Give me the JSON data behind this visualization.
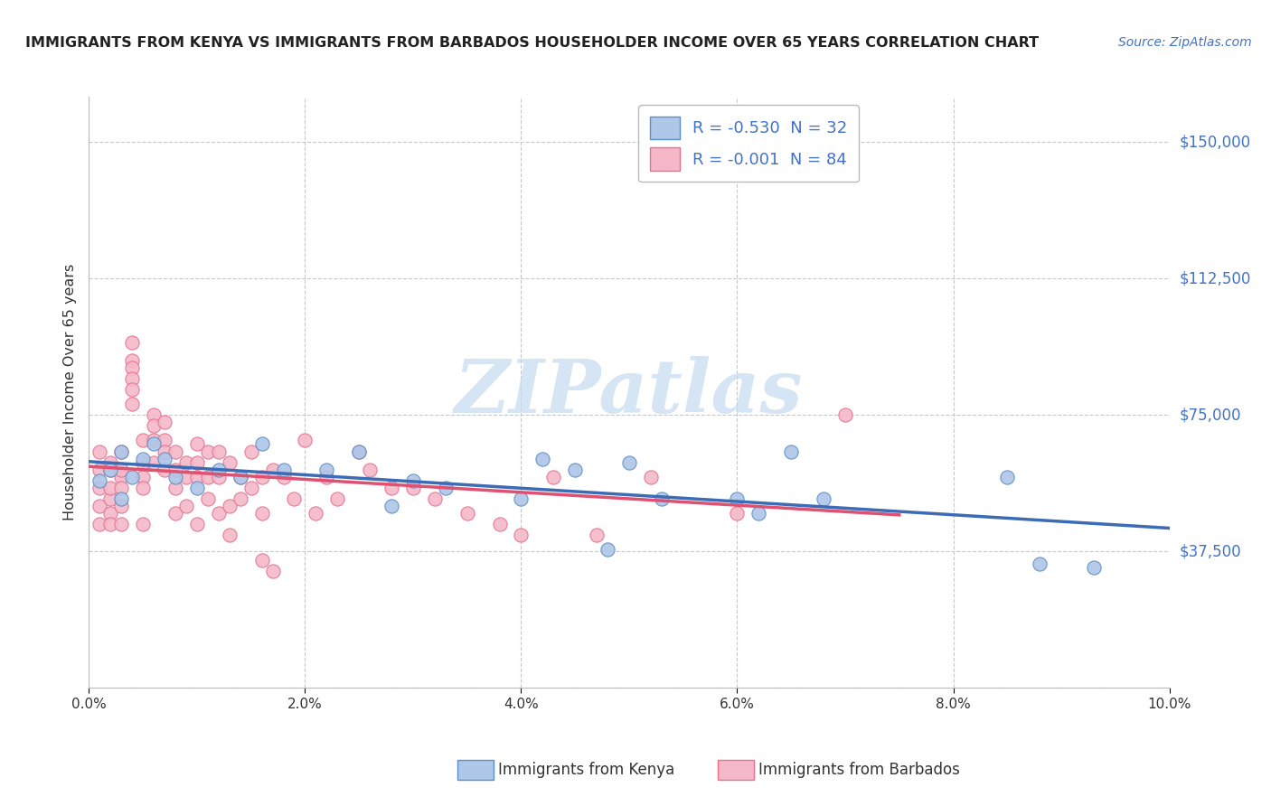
{
  "title": "IMMIGRANTS FROM KENYA VS IMMIGRANTS FROM BARBADOS HOUSEHOLDER INCOME OVER 65 YEARS CORRELATION CHART",
  "source": "Source: ZipAtlas.com",
  "ylabel": "Householder Income Over 65 years",
  "xlim": [
    0,
    0.1
  ],
  "ylim": [
    0,
    162500
  ],
  "yticks": [
    0,
    37500,
    75000,
    112500,
    150000
  ],
  "ytick_labels": [
    "",
    "$37,500",
    "$75,000",
    "$112,500",
    "$150,000"
  ],
  "xtick_labels": [
    "0.0%",
    "2.0%",
    "4.0%",
    "6.0%",
    "8.0%",
    "10.0%"
  ],
  "xticks": [
    0.0,
    0.02,
    0.04,
    0.06,
    0.08,
    0.1
  ],
  "kenya_R": -0.53,
  "kenya_N": 32,
  "barbados_R": -0.001,
  "barbados_N": 84,
  "kenya_color": "#aec6e8",
  "barbados_color": "#f4b8c8",
  "kenya_edge_color": "#5b8fc9",
  "barbados_edge_color": "#e87090",
  "kenya_line_color": "#3c6cb5",
  "barbados_line_color": "#e05070",
  "legend_kenya_label": "Immigrants from Kenya",
  "legend_barbados_label": "Immigrants from Barbados",
  "watermark_text": "ZIPatlas",
  "watermark_color": "#c5daf0",
  "background_color": "#ffffff",
  "grid_color": "#c8c8c8",
  "title_color": "#222222",
  "source_color": "#4472c4",
  "axis_label_color": "#333333",
  "kenya_x": [
    0.001,
    0.002,
    0.003,
    0.003,
    0.004,
    0.005,
    0.006,
    0.007,
    0.008,
    0.01,
    0.012,
    0.014,
    0.016,
    0.018,
    0.022,
    0.025,
    0.028,
    0.03,
    0.033,
    0.04,
    0.042,
    0.045,
    0.048,
    0.05,
    0.053,
    0.06,
    0.062,
    0.065,
    0.068,
    0.085,
    0.088,
    0.093
  ],
  "kenya_y": [
    57000,
    60000,
    65000,
    52000,
    58000,
    63000,
    67000,
    63000,
    58000,
    55000,
    60000,
    58000,
    67000,
    60000,
    60000,
    65000,
    50000,
    57000,
    55000,
    52000,
    63000,
    60000,
    38000,
    62000,
    52000,
    52000,
    48000,
    65000,
    52000,
    58000,
    34000,
    33000
  ],
  "barbados_x": [
    0.001,
    0.001,
    0.001,
    0.001,
    0.001,
    0.002,
    0.002,
    0.002,
    0.002,
    0.002,
    0.002,
    0.003,
    0.003,
    0.003,
    0.003,
    0.003,
    0.003,
    0.004,
    0.004,
    0.004,
    0.004,
    0.004,
    0.004,
    0.005,
    0.005,
    0.005,
    0.005,
    0.005,
    0.006,
    0.006,
    0.006,
    0.006,
    0.007,
    0.007,
    0.007,
    0.007,
    0.008,
    0.008,
    0.008,
    0.008,
    0.009,
    0.009,
    0.009,
    0.01,
    0.01,
    0.01,
    0.01,
    0.011,
    0.011,
    0.011,
    0.012,
    0.012,
    0.012,
    0.013,
    0.013,
    0.013,
    0.014,
    0.014,
    0.015,
    0.015,
    0.016,
    0.016,
    0.016,
    0.017,
    0.017,
    0.018,
    0.019,
    0.02,
    0.021,
    0.022,
    0.023,
    0.025,
    0.026,
    0.028,
    0.03,
    0.032,
    0.035,
    0.038,
    0.04,
    0.043,
    0.047,
    0.052,
    0.06,
    0.07
  ],
  "barbados_y": [
    60000,
    50000,
    65000,
    55000,
    45000,
    52000,
    62000,
    55000,
    48000,
    60000,
    45000,
    58000,
    50000,
    65000,
    55000,
    60000,
    45000,
    90000,
    95000,
    88000,
    85000,
    82000,
    78000,
    62000,
    58000,
    68000,
    55000,
    45000,
    75000,
    72000,
    68000,
    62000,
    68000,
    73000,
    65000,
    60000,
    65000,
    60000,
    55000,
    48000,
    62000,
    58000,
    50000,
    67000,
    62000,
    58000,
    45000,
    58000,
    65000,
    52000,
    58000,
    65000,
    48000,
    62000,
    50000,
    42000,
    52000,
    58000,
    65000,
    55000,
    58000,
    48000,
    35000,
    60000,
    32000,
    58000,
    52000,
    68000,
    48000,
    58000,
    52000,
    65000,
    60000,
    55000,
    55000,
    52000,
    48000,
    45000,
    42000,
    58000,
    42000,
    58000,
    48000,
    75000
  ]
}
